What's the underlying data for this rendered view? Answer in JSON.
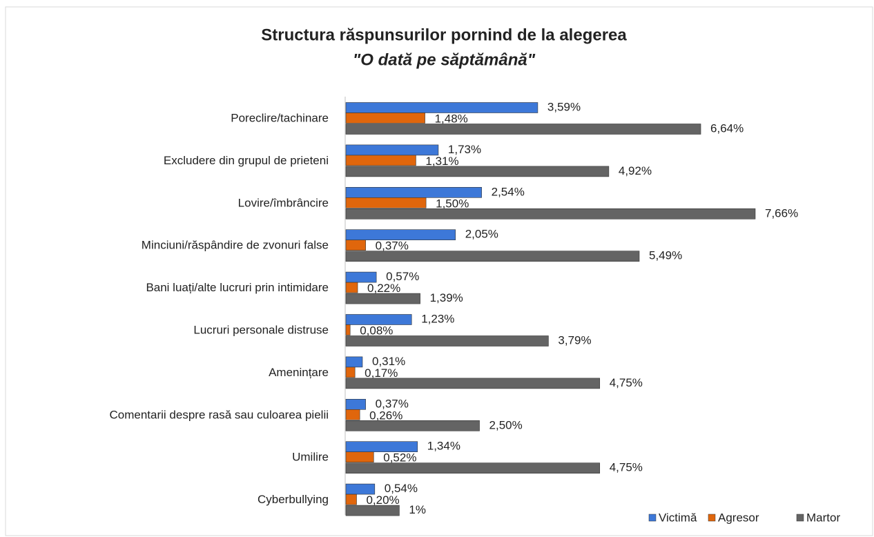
{
  "chart_data": {
    "type": "bar",
    "orientation": "horizontal",
    "title": "Structura răspunsurilor pornind de la alegerea",
    "subtitle": "\"O dată pe săptămână\"",
    "categories": [
      "Poreclire/tachinare",
      "Excludere din grupul de prieteni",
      "Lovire/îmbrâncire",
      "Minciuni/răspândire de zvonuri false",
      "Bani luați/alte lucruri prin intimidare",
      "Lucruri personale distruse",
      "Amenințare",
      "Comentarii despre rasă sau culoarea pielii",
      "Umilire",
      "Cyberbullying"
    ],
    "series": [
      {
        "name": "Victimă",
        "color": "#3d78d8",
        "values": [
          3.59,
          1.73,
          2.54,
          2.05,
          0.57,
          1.23,
          0.31,
          0.37,
          1.34,
          0.54
        ],
        "value_labels": [
          "3,59%",
          "1,73%",
          "2,54%",
          "2,05%",
          "0,57%",
          "1,23%",
          "0,31%",
          "0,37%",
          "1,34%",
          "0,54%"
        ]
      },
      {
        "name": "Agresor",
        "color": "#e0660c",
        "values": [
          1.48,
          1.31,
          1.5,
          0.37,
          0.22,
          0.08,
          0.17,
          0.26,
          0.52,
          0.2
        ],
        "value_labels": [
          "1,48%",
          "1,31%",
          "1,50%",
          "0,37%",
          "0,22%",
          "0,08%",
          "0,17%",
          "0,26%",
          "0,52%",
          "0,20%"
        ]
      },
      {
        "name": "Martor",
        "color": "#646464",
        "values": [
          6.64,
          4.92,
          7.66,
          5.49,
          1.39,
          3.79,
          4.75,
          2.5,
          4.75,
          1
        ],
        "value_labels": [
          "6,64%",
          "4,92%",
          "7,66%",
          "5,49%",
          "1,39%",
          "3,79%",
          "4,75%",
          "2,50%",
          "4,75%",
          "1%"
        ]
      }
    ],
    "legend": "bottom-right"
  }
}
